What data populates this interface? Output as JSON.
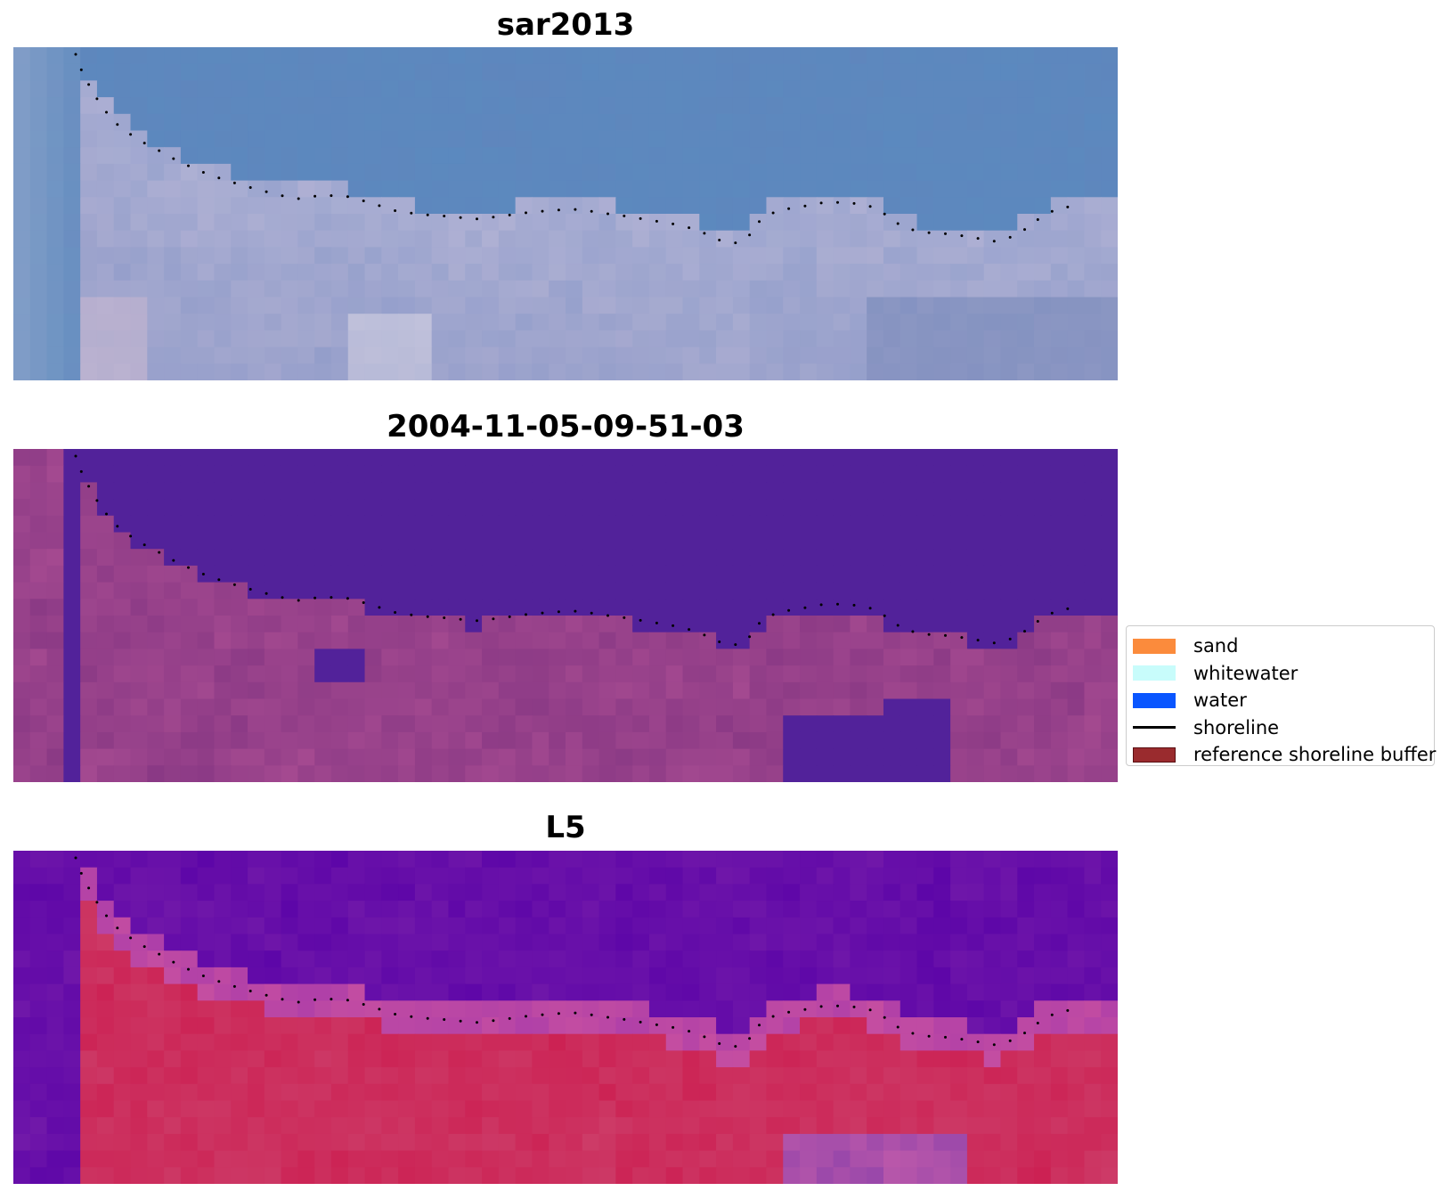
{
  "panels": [
    {
      "title": "sar2013",
      "style": "rgb"
    },
    {
      "title": "2004-11-05-09-51-03",
      "style": "classified"
    },
    {
      "title": "L5",
      "style": "index"
    }
  ],
  "legend": {
    "items": [
      {
        "label": "sand",
        "kind": "patch",
        "color": "#fb8b3c"
      },
      {
        "label": "whitewater",
        "kind": "patch",
        "color": "#c8fcfb"
      },
      {
        "label": "water",
        "kind": "patch",
        "color": "#0a56ff"
      },
      {
        "label": "shoreline",
        "kind": "line",
        "color": "#000000"
      },
      {
        "label": "reference shoreline buffer",
        "kind": "patch",
        "color": "#9a2b2e"
      }
    ]
  },
  "colors": {
    "rgb_water": "#5f86bd",
    "class_water": "#52229a",
    "index_water": "#5b04a8",
    "index_land": "#cc2052"
  }
}
